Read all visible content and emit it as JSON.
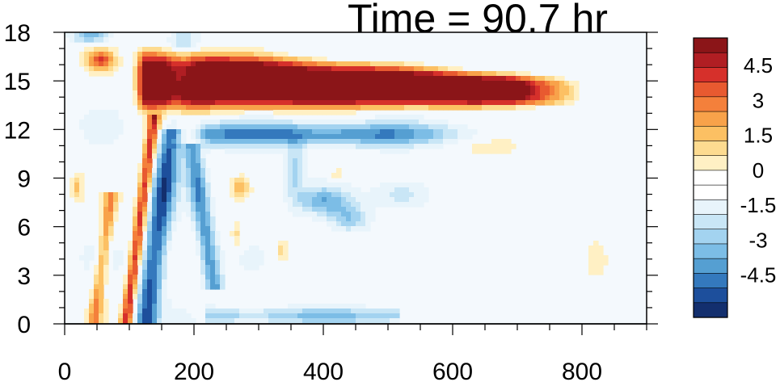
{
  "chart_data": {
    "type": "heatmap",
    "title": "Time = 90.7 hr",
    "xlabel": "",
    "ylabel": "",
    "xlim": [
      0,
      900
    ],
    "ylim": [
      0,
      18
    ],
    "x_ticks": [
      "0",
      "200",
      "400",
      "600",
      "800"
    ],
    "y_ticks": [
      "0",
      "3",
      "6",
      "9",
      "12",
      "15",
      "18"
    ],
    "colorbar": {
      "range": [
        -6,
        6
      ],
      "step": 0.75,
      "labels": [
        "4.5",
        "3",
        "1.5",
        "0",
        "-1.5",
        "-3",
        "-4.5"
      ],
      "colors": [
        "#8b1518",
        "#b01e23",
        "#d6302b",
        "#e85a30",
        "#f4803b",
        "#f8a24a",
        "#fcc063",
        "#fddb90",
        "#fff0c4",
        "#ffffff",
        "#ffffff",
        "#e8f4fb",
        "#c9e6f6",
        "#a3d3f0",
        "#7cbde6",
        "#559fd2",
        "#3479bd",
        "#1d4f9c",
        "#132f6e"
      ]
    },
    "features": [
      {
        "name": "warm-outflow-band",
        "x_range": [
          110,
          800
        ],
        "y_range": [
          13.2,
          16.5
        ],
        "value": 6
      },
      {
        "name": "cool-band-below",
        "x_range": [
          200,
          650
        ],
        "y_range": [
          10.8,
          12.6
        ],
        "value": -3.5
      },
      {
        "name": "vertical-front",
        "x_range": [
          50,
          240
        ],
        "y_range": [
          0,
          18
        ],
        "value": -4
      }
    ]
  }
}
